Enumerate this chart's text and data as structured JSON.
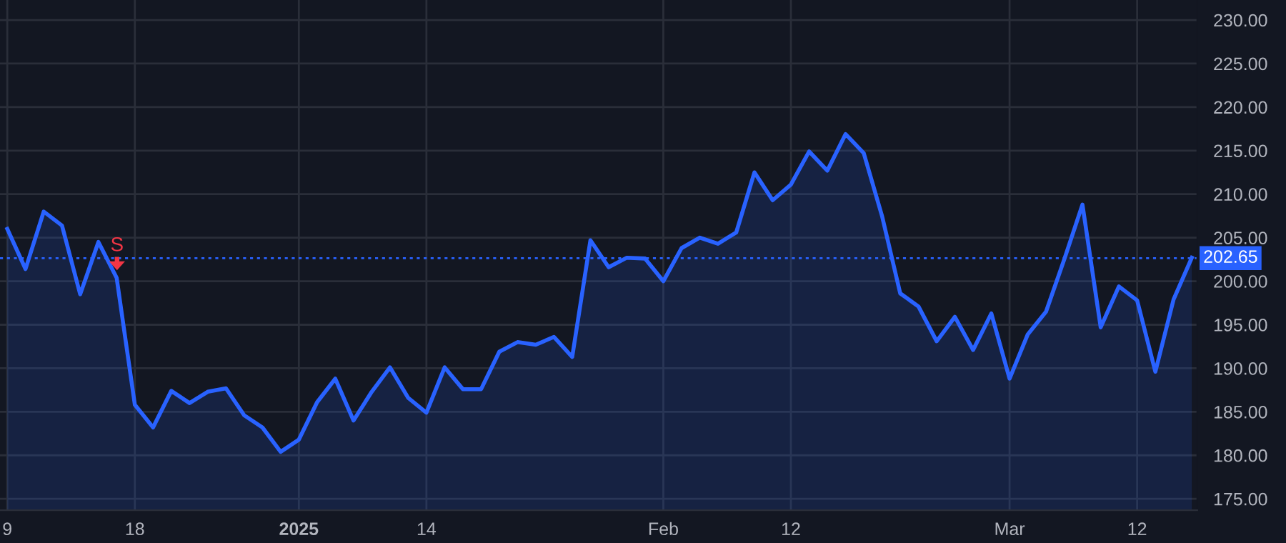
{
  "chart_data": {
    "type": "area",
    "categories": [
      "9",
      null,
      null,
      null,
      null,
      null,
      null,
      "18",
      null,
      null,
      null,
      null,
      null,
      null,
      null,
      null,
      "2025",
      null,
      null,
      null,
      null,
      null,
      null,
      "14",
      null,
      null,
      null,
      null,
      null,
      null,
      null,
      null,
      null,
      null,
      null,
      null,
      "Feb",
      null,
      null,
      null,
      null,
      null,
      null,
      "12",
      null,
      null,
      null,
      null,
      null,
      null,
      null,
      null,
      null,
      null,
      null,
      "Mar",
      null,
      null,
      null,
      null,
      null,
      null,
      "12",
      null,
      null,
      null
    ],
    "series": [
      {
        "color": "#2962ff",
        "values": [
          206.0,
          201.4,
          208.0,
          206.4,
          198.5,
          204.5,
          200.4,
          185.8,
          183.2,
          187.4,
          186.0,
          187.3,
          187.7,
          184.6,
          183.2,
          180.4,
          181.8,
          186.1,
          188.8,
          184.0,
          187.3,
          190.1,
          186.6,
          184.9,
          190.1,
          187.6,
          187.6,
          191.9,
          193.0,
          192.7,
          193.6,
          191.3,
          204.7,
          201.6,
          202.7,
          202.6,
          200.0,
          203.8,
          205.0,
          204.3,
          205.6,
          212.5,
          209.3,
          211.1,
          214.9,
          212.7,
          216.9,
          214.7,
          207.5,
          198.6,
          197.1,
          193.1,
          195.9,
          192.1,
          196.3,
          188.8,
          193.9,
          196.5,
          202.5,
          208.8,
          194.7,
          199.4,
          197.8,
          189.6,
          197.9,
          202.7
        ]
      }
    ],
    "ylim": [
      173.7,
      232.3
    ],
    "yticks": [
      {
        "value": 175,
        "label": "175.00"
      },
      {
        "value": 180,
        "label": "180.00"
      },
      {
        "value": 185,
        "label": "185.00"
      },
      {
        "value": 190,
        "label": "190.00"
      },
      {
        "value": 195,
        "label": "195.00"
      },
      {
        "value": 200,
        "label": "200.00"
      },
      {
        "value": 205,
        "label": "205.00"
      },
      {
        "value": 210,
        "label": "210.00"
      },
      {
        "value": 215,
        "label": "215.00"
      },
      {
        "value": 220,
        "label": "220.00"
      },
      {
        "value": 225,
        "label": "225.00"
      },
      {
        "value": 230,
        "label": "230.00"
      }
    ],
    "ref_lines": [
      {
        "axis": "y",
        "value": 202.65,
        "label": "202.65",
        "color": "#2962ff",
        "line_style": "dotted"
      }
    ],
    "annotations": [
      "S"
    ],
    "grid": true,
    "legend": false
  }
}
